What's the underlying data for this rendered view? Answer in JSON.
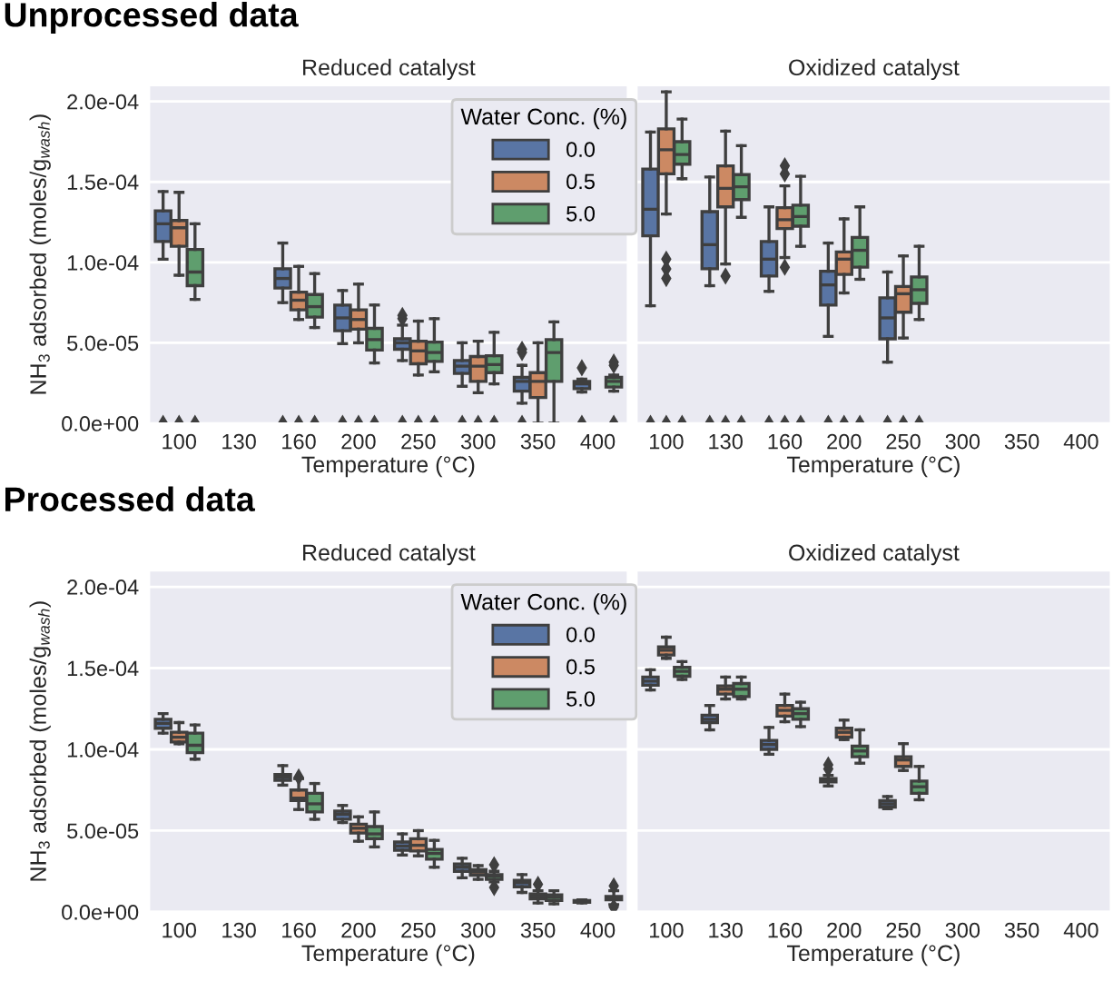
{
  "chart_data": [
    {
      "type": "box",
      "title": "Reduced catalyst",
      "xlabel": "Temperature (°C)",
      "ylabel": "NH$_{3}$ adsorbed (moles/g$_{wash}$)",
      "annotations": [
        "Unprocessed data"
      ],
      "legend": "top right",
      "legend_title": "Water Conc. (%)",
      "grid": "y",
      "categories": [
        "100",
        "130",
        "160",
        "200",
        "250",
        "300",
        "350",
        "400"
      ],
      "ylim": [
        0,
        0.00021
      ],
      "yticks": [
        {
          "value": 0,
          "label": "0.0e+00"
        },
        {
          "value": 5e-05,
          "label": "5.0e-05"
        },
        {
          "value": 0.0001,
          "label": "1.0e-04"
        },
        {
          "value": 0.00015,
          "label": "1.5e-04"
        },
        {
          "value": 0.0002,
          "label": "2.0e-04"
        }
      ],
      "series": [
        {
          "name": "0.0",
          "color": "#5975a4",
          "boxes": [
            {
              "low": 0.000102,
              "q1": 0.000113,
              "median": 0.000124,
              "q3": 0.000132,
              "high": 0.000144,
              "outliers": [
                0
              ]
            },
            null,
            {
              "low": 7.5e-05,
              "q1": 8.4e-05,
              "median": 9e-05,
              "q3": 9.6e-05,
              "high": 0.000112,
              "outliers": [
                0
              ]
            },
            {
              "low": 4.95e-05,
              "q1": 5.75e-05,
              "median": 6.55e-05,
              "q3": 7.35e-05,
              "high": 8.25e-05,
              "outliers": [
                0
              ]
            },
            {
              "low": 3.9e-05,
              "q1": 4.6e-05,
              "median": 5e-05,
              "q3": 5.25e-05,
              "high": 6.1e-05,
              "outliers": [
                0,
                6.5e-05,
                6.7e-05
              ]
            },
            {
              "low": 2.3e-05,
              "q1": 3.1e-05,
              "median": 3.55e-05,
              "q3": 3.9e-05,
              "high": 5e-05,
              "outliers": [
                0
              ]
            },
            {
              "low": 1.25e-05,
              "q1": 2e-05,
              "median": 2.6e-05,
              "q3": 2.85e-05,
              "high": 3.6e-05,
              "outliers": [
                0,
                4.4e-05,
                4.6e-05
              ]
            },
            {
              "low": 1.95e-05,
              "q1": 2.15e-05,
              "median": 2.45e-05,
              "q3": 2.6e-05,
              "high": 2.75e-05,
              "outliers": [
                0,
                3.45e-05
              ]
            }
          ]
        },
        {
          "name": "0.5",
          "color": "#cc8963",
          "boxes": [
            {
              "low": 9.2e-05,
              "q1": 0.00011,
              "median": 0.0001215,
              "q3": 0.000126,
              "high": 0.0001435,
              "outliers": [
                0
              ]
            },
            null,
            {
              "low": 6.45e-05,
              "q1": 7.05e-05,
              "median": 7.65e-05,
              "q3": 8.15e-05,
              "high": 9.75e-05,
              "outliers": [
                0
              ]
            },
            {
              "low": 5e-05,
              "q1": 5.85e-05,
              "median": 6.45e-05,
              "q3": 7.05e-05,
              "high": 8.65e-05,
              "outliers": [
                0
              ]
            },
            {
              "low": 3e-05,
              "q1": 3.7e-05,
              "median": 4.5e-05,
              "q3": 5.1e-05,
              "high": 6.35e-05,
              "outliers": [
                0
              ]
            },
            {
              "low": 1.9e-05,
              "q1": 2.6e-05,
              "median": 3.55e-05,
              "q3": 4.15e-05,
              "high": 5.1e-05,
              "outliers": [
                0
              ]
            },
            {
              "low": 0,
              "q1": 1.6e-05,
              "median": 2.6e-05,
              "q3": 3.15e-05,
              "high": 5e-05
            },
            null
          ]
        },
        {
          "name": "5.0",
          "color": "#5f9e6e",
          "boxes": [
            {
              "low": 7.7e-05,
              "q1": 8.55e-05,
              "median": 9.4e-05,
              "q3": 0.000108,
              "high": 0.000124,
              "outliers": [
                0
              ]
            },
            null,
            {
              "low": 5.95e-05,
              "q1": 6.6e-05,
              "median": 7.25e-05,
              "q3": 8e-05,
              "high": 9.3e-05,
              "outliers": [
                0
              ]
            },
            {
              "low": 3.75e-05,
              "q1": 4.55e-05,
              "median": 5.2e-05,
              "q3": 5.9e-05,
              "high": 7.35e-05,
              "outliers": [
                0
              ]
            },
            {
              "low": 3.2e-05,
              "q1": 3.85e-05,
              "median": 4.4e-05,
              "q3": 5.05e-05,
              "high": 6.5e-05,
              "outliers": [
                0
              ]
            },
            {
              "low": 2.45e-05,
              "q1": 3.15e-05,
              "median": 3.65e-05,
              "q3": 4.2e-05,
              "high": 5.65e-05,
              "outliers": [
                0
              ]
            },
            {
              "low": 0,
              "q1": 2.6e-05,
              "median": 4.4e-05,
              "q3": 5.2e-05,
              "high": 6.3e-05
            },
            {
              "low": 2e-05,
              "q1": 2.25e-05,
              "median": 2.6e-05,
              "q3": 2.85e-05,
              "high": 3e-05,
              "outliers": [
                0,
                3.6e-05,
                3.8e-05
              ]
            }
          ]
        }
      ]
    },
    {
      "type": "box",
      "title": "Oxidized catalyst",
      "xlabel": "Temperature (°C)",
      "grid": "y",
      "tick_labels": "x",
      "categories": [
        "100",
        "130",
        "160",
        "200",
        "250",
        "300",
        "350",
        "400"
      ],
      "ylim": [
        0,
        0.00021
      ],
      "yticks": [
        {
          "value": 0,
          "label": null
        },
        {
          "value": 5e-05,
          "label": null
        },
        {
          "value": 0.0001,
          "label": null
        },
        {
          "value": 0.00015,
          "label": null
        },
        {
          "value": 0.0002,
          "label": null
        }
      ],
      "series": [
        {
          "color": "#5975a4",
          "boxes": [
            {
              "low": 7.3e-05,
              "q1": 0.0001165,
              "median": 0.000133,
              "q3": 0.000158,
              "high": 0.000181,
              "outliers": [
                0
              ]
            },
            {
              "low": 8.55e-05,
              "q1": 9.6e-05,
              "median": 0.000111,
              "q3": 0.0001315,
              "high": 0.000153,
              "outliers": [
                0
              ]
            },
            {
              "low": 8.2e-05,
              "q1": 9.15e-05,
              "median": 0.000102,
              "q3": 0.000113,
              "high": 0.0001345,
              "outliers": [
                0
              ]
            },
            {
              "low": 5.4e-05,
              "q1": 7.35e-05,
              "median": 8.6e-05,
              "q3": 9.45e-05,
              "high": 0.000112,
              "outliers": [
                0
              ]
            },
            {
              "low": 3.8e-05,
              "q1": 5.25e-05,
              "median": 6.55e-05,
              "q3": 7.8e-05,
              "high": 9.4e-05,
              "outliers": [
                0
              ]
            },
            null,
            null,
            null
          ]
        },
        {
          "color": "#cc8963",
          "boxes": [
            {
              "low": 0.00013,
              "q1": 0.000155,
              "median": 0.00017,
              "q3": 0.000183,
              "high": 0.000206,
              "outliers": [
                0,
                9e-05,
                9.6e-05,
                0.000102
              ]
            },
            {
              "low": 9.9e-05,
              "q1": 0.0001345,
              "median": 0.000146,
              "q3": 0.00016,
              "high": 0.0001815,
              "outliers": [
                0,
                9.15e-05
              ]
            },
            {
              "low": 0.000103,
              "q1": 0.000121,
              "median": 0.0001265,
              "q3": 0.000134,
              "high": 0.0001475,
              "outliers": [
                0,
                9.7e-05,
                0.000155,
                0.00016
              ]
            },
            {
              "low": 8.1e-05,
              "q1": 9.25e-05,
              "median": 0.000102,
              "q3": 0.0001065,
              "high": 0.000127,
              "outliers": [
                0
              ]
            },
            {
              "low": 5.3e-05,
              "q1": 6.9e-05,
              "median": 8.05e-05,
              "q3": 8.5e-05,
              "high": 0.000104,
              "outliers": [
                0
              ]
            },
            null,
            null,
            null
          ]
        },
        {
          "color": "#5f9e6e",
          "boxes": [
            {
              "low": 0.000152,
              "q1": 0.000161,
              "median": 0.000167,
              "q3": 0.000175,
              "high": 0.000189,
              "outliers": [
                0
              ]
            },
            {
              "low": 0.000128,
              "q1": 0.000139,
              "median": 0.000147,
              "q3": 0.0001545,
              "high": 0.0001725,
              "outliers": [
                0
              ]
            },
            {
              "low": 0.00011,
              "q1": 0.0001225,
              "median": 0.0001285,
              "q3": 0.0001355,
              "high": 0.0001535,
              "outliers": [
                0
              ]
            },
            {
              "low": 8.95e-05,
              "q1": 9.7e-05,
              "median": 0.0001075,
              "q3": 0.0001155,
              "high": 0.0001345,
              "outliers": [
                0
              ]
            },
            {
              "low": 6.45e-05,
              "q1": 7.45e-05,
              "median": 8.3e-05,
              "q3": 9.1e-05,
              "high": 0.00011,
              "outliers": [
                0
              ]
            },
            null,
            null,
            null
          ]
        }
      ]
    },
    {
      "type": "box",
      "title": "Reduced catalyst",
      "xlabel": "Temperature (°C)",
      "ylabel": "NH$_{3}$ adsorbed (moles/g$_{wash}$)",
      "annotations": [
        "Processed data"
      ],
      "legend": "top right",
      "legend_title": "Water Conc. (%)",
      "grid": "y",
      "categories": [
        "100",
        "130",
        "160",
        "200",
        "250",
        "300",
        "350",
        "400"
      ],
      "ylim": [
        0,
        0.00021
      ],
      "yticks": [
        {
          "value": 0,
          "label": "0.0e+00"
        },
        {
          "value": 5e-05,
          "label": "5.0e-05"
        },
        {
          "value": 0.0001,
          "label": "1.0e-04"
        },
        {
          "value": 0.00015,
          "label": "1.5e-04"
        },
        {
          "value": 0.0002,
          "label": "2.0e-04"
        }
      ],
      "series": [
        {
          "name": "0.0",
          "color": "#5975a4",
          "boxes": [
            {
              "low": 0.00011,
              "q1": 0.000113,
              "median": 0.000116,
              "q3": 0.0001185,
              "high": 0.000122
            },
            null,
            {
              "low": 7.8e-05,
              "q1": 8.1e-05,
              "median": 8.3e-05,
              "q3": 8.45e-05,
              "high": 9e-05
            },
            {
              "low": 5.5e-05,
              "q1": 5.7e-05,
              "median": 6e-05,
              "q3": 6.2e-05,
              "high": 6.55e-05
            },
            {
              "low": 3.5e-05,
              "q1": 3.8e-05,
              "median": 4.05e-05,
              "q3": 4.3e-05,
              "high": 4.8e-05
            },
            {
              "low": 2.1e-05,
              "q1": 2.5e-05,
              "median": 2.75e-05,
              "q3": 2.95e-05,
              "high": 3.3e-05
            },
            {
              "low": 1.2e-05,
              "q1": 1.55e-05,
              "median": 1.8e-05,
              "q3": 1.95e-05,
              "high": 2.3e-05
            },
            {
              "low": 5.5e-06,
              "q1": 6e-06,
              "median": 6.5e-06,
              "q3": 7e-06,
              "high": 7.5e-06
            }
          ]
        },
        {
          "name": "0.5",
          "color": "#cc8963",
          "boxes": [
            {
              "low": 0.0001035,
              "q1": 0.0001045,
              "median": 0.0001075,
              "q3": 0.0001105,
              "high": 0.0001165
            },
            null,
            {
              "low": 6.3e-05,
              "q1": 6.85e-05,
              "median": 7e-05,
              "q3": 7.5e-05,
              "high": 8.2e-05,
              "outliers": [
                8.3e-05
              ]
            },
            {
              "low": 4.35e-05,
              "q1": 4.85e-05,
              "median": 5.15e-05,
              "q3": 5.4e-05,
              "high": 5.85e-05
            },
            {
              "low": 3.45e-05,
              "q1": 3.75e-05,
              "median": 4.1e-05,
              "q3": 4.5e-05,
              "high": 5e-05
            },
            {
              "low": 2e-05,
              "q1": 2.25e-05,
              "median": 2.45e-05,
              "q3": 2.6e-05,
              "high": 2.85e-05
            },
            {
              "low": 5.5e-06,
              "q1": 8e-06,
              "median": 9.5e-06,
              "q3": 1.1e-05,
              "high": 1.3e-05,
              "outliers": [
                1.7e-05
              ]
            },
            null
          ]
        },
        {
          "name": "5.0",
          "color": "#5f9e6e",
          "boxes": [
            {
              "low": 9.4e-05,
              "q1": 9.8e-05,
              "median": 0.0001025,
              "q3": 0.00011,
              "high": 0.000115
            },
            null,
            {
              "low": 5.7e-05,
              "q1": 6.15e-05,
              "median": 6.65e-05,
              "q3": 7.3e-05,
              "high": 7.9e-05
            },
            {
              "low": 4e-05,
              "q1": 4.5e-05,
              "median": 4.8e-05,
              "q3": 5.25e-05,
              "high": 6.15e-05
            },
            {
              "low": 2.75e-05,
              "q1": 3.25e-05,
              "median": 3.6e-05,
              "q3": 3.85e-05,
              "high": 4.4e-05
            },
            {
              "low": 1.85e-05,
              "q1": 2e-05,
              "median": 2.2e-05,
              "q3": 2.3e-05,
              "high": 2.5e-05,
              "outliers": [
                1.5e-05,
                2.9e-05
              ]
            },
            {
              "low": 5e-06,
              "q1": 7e-06,
              "median": 9e-06,
              "q3": 1.05e-05,
              "high": 1.3e-05
            },
            {
              "low": 4.5e-06,
              "q1": 7.5e-06,
              "median": 8.5e-06,
              "q3": 9.5e-06,
              "high": 1.3e-05,
              "outliers": [
                3e-06,
                1.6e-05
              ]
            }
          ]
        }
      ]
    },
    {
      "type": "box",
      "title": "Oxidized catalyst",
      "xlabel": "Temperature (°C)",
      "grid": "y",
      "tick_labels": "x",
      "categories": [
        "100",
        "130",
        "160",
        "200",
        "250",
        "300",
        "350",
        "400"
      ],
      "ylim": [
        0,
        0.00021
      ],
      "yticks": [
        {
          "value": 0,
          "label": null
        },
        {
          "value": 5e-05,
          "label": null
        },
        {
          "value": 0.0001,
          "label": null
        },
        {
          "value": 0.00015,
          "label": null
        },
        {
          "value": 0.0002,
          "label": null
        }
      ],
      "series": [
        {
          "color": "#5975a4",
          "boxes": [
            {
              "low": 0.0001365,
              "q1": 0.0001395,
              "median": 0.000142,
              "q3": 0.0001445,
              "high": 0.000149
            },
            {
              "low": 0.000112,
              "q1": 0.0001165,
              "median": 0.0001185,
              "q3": 0.000121,
              "high": 0.000127
            },
            {
              "low": 9.7e-05,
              "q1": 0.0001,
              "median": 0.000103,
              "q3": 0.0001055,
              "high": 0.0001135
            },
            {
              "low": 7.75e-05,
              "q1": 8e-05,
              "median": 8.1e-05,
              "q3": 8.2e-05,
              "high": 8.4e-05,
              "outliers": [
                8.8e-05,
                9.05e-05
              ]
            },
            {
              "low": 6.35e-05,
              "q1": 6.45e-05,
              "median": 6.65e-05,
              "q3": 6.85e-05,
              "high": 7.1e-05
            },
            null,
            null,
            null
          ]
        },
        {
          "color": "#cc8963",
          "boxes": [
            {
              "low": 0.000156,
              "q1": 0.000158,
              "median": 0.000161,
              "q3": 0.000163,
              "high": 0.000169
            },
            {
              "low": 0.000131,
              "q1": 0.000134,
              "median": 0.000137,
              "q3": 0.000139,
              "high": 0.0001445
            },
            {
              "low": 0.000117,
              "q1": 0.0001205,
              "median": 0.000124,
              "q3": 0.000127,
              "high": 0.000134
            },
            {
              "low": 0.000106,
              "q1": 0.0001075,
              "median": 0.0001105,
              "q3": 0.000113,
              "high": 0.000118
            },
            {
              "low": 8.7e-05,
              "q1": 8.95e-05,
              "median": 9.35e-05,
              "q3": 9.55e-05,
              "high": 0.0001035
            },
            null,
            null,
            null
          ]
        },
        {
          "color": "#5f9e6e",
          "boxes": [
            {
              "low": 0.000143,
              "q1": 0.000145,
              "median": 0.000148,
              "q3": 0.0001505,
              "high": 0.000154
            },
            {
              "low": 0.000131,
              "q1": 0.0001325,
              "median": 0.000137,
              "q3": 0.0001405,
              "high": 0.0001445
            },
            {
              "low": 0.000114,
              "q1": 0.0001185,
              "median": 0.000122,
              "q3": 0.000125,
              "high": 0.000129
            },
            {
              "low": 9.15e-05,
              "q1": 9.55e-05,
              "median": 9.9e-05,
              "q3": 0.000102,
              "high": 0.000112
            },
            {
              "low": 6.9e-05,
              "q1": 7.3e-05,
              "median": 7.7e-05,
              "q3": 8.05e-05,
              "high": 8.95e-05
            },
            null,
            null,
            null
          ]
        }
      ]
    }
  ]
}
